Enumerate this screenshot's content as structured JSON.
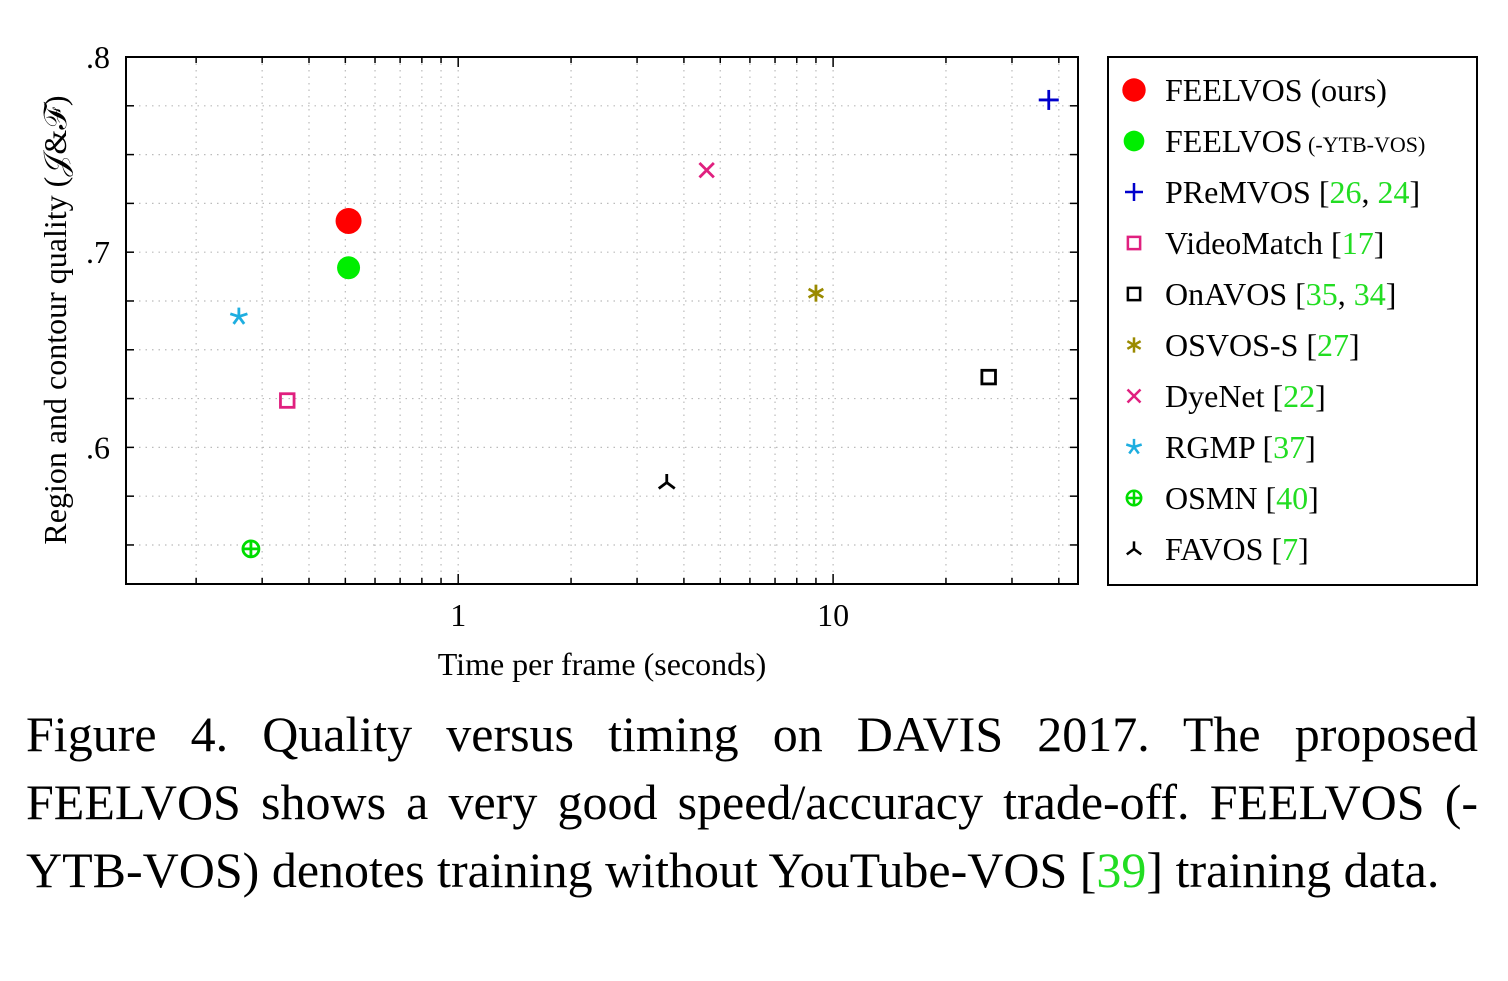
{
  "chart_data": {
    "type": "scatter",
    "xlabel": "Time per frame (seconds)",
    "ylabel": "Region and contour quality (𝒥&ℱ)",
    "xscale": "log",
    "xlim": [
      0.13,
      45
    ],
    "ylim": [
      0.53,
      0.8
    ],
    "grid": true,
    "legend_position": "right-outside",
    "xticks": [
      {
        "value": 1,
        "label": "1"
      },
      {
        "value": 10,
        "label": "10"
      }
    ],
    "yticks": [
      {
        "value": 0.6,
        "label": ".6"
      },
      {
        "value": 0.7,
        "label": ".7"
      },
      {
        "value": 0.8,
        "label": ".8"
      }
    ],
    "series": [
      {
        "name": "FEELVOS (ours)",
        "name_suffix": "",
        "refs": [],
        "marker": "filled-circle-large",
        "color": "#ff0000",
        "x": 0.51,
        "y": 0.716
      },
      {
        "name": "FEELVOS",
        "name_suffix": "(-YTB-VOS)",
        "refs": [],
        "marker": "filled-circle",
        "color": "#00ee00",
        "x": 0.51,
        "y": 0.692
      },
      {
        "name": "PReMVOS",
        "name_suffix": "",
        "refs": [
          "26",
          "24"
        ],
        "marker": "plus",
        "color": "#0000cc",
        "x": 37.6,
        "y": 0.778
      },
      {
        "name": "VideoMatch",
        "name_suffix": "",
        "refs": [
          "17"
        ],
        "marker": "square",
        "color": "#e0207f",
        "x": 0.35,
        "y": 0.624
      },
      {
        "name": "OnAVOS",
        "name_suffix": "",
        "refs": [
          "35",
          "34"
        ],
        "marker": "square",
        "color": "#000000",
        "x": 26.0,
        "y": 0.636
      },
      {
        "name": "OSVOS-S",
        "name_suffix": "",
        "refs": [
          "27"
        ],
        "marker": "asterisk",
        "color": "#9a8a00",
        "x": 9.0,
        "y": 0.679
      },
      {
        "name": "DyeNet",
        "name_suffix": "",
        "refs": [
          "22"
        ],
        "marker": "cross",
        "color": "#e0207f",
        "x": 4.6,
        "y": 0.742
      },
      {
        "name": "RGMP",
        "name_suffix": "",
        "refs": [
          "37"
        ],
        "marker": "star",
        "color": "#1eaee0",
        "x": 0.26,
        "y": 0.667
      },
      {
        "name": "OSMN",
        "name_suffix": "",
        "refs": [
          "40"
        ],
        "marker": "oplus",
        "color": "#00dd00",
        "x": 0.28,
        "y": 0.548
      },
      {
        "name": "FAVOS",
        "name_suffix": "",
        "refs": [
          "7"
        ],
        "marker": "tri-down",
        "color": "#000000",
        "x": 3.6,
        "y": 0.582
      }
    ]
  },
  "caption": {
    "label": "Figure 4.",
    "text_1": " Quality versus timing on DAVIS 2017.  The proposed FEELVOS shows a very good speed/accuracy trade-off. FEELVOS (-YTB-VOS) denotes training without YouTube-VOS ",
    "ref_open": "[",
    "ref": "39",
    "ref_close": "]",
    "text_2": " training data."
  },
  "colors": {
    "ref_link": "#22dd22",
    "grid": "#bbbbbb"
  }
}
